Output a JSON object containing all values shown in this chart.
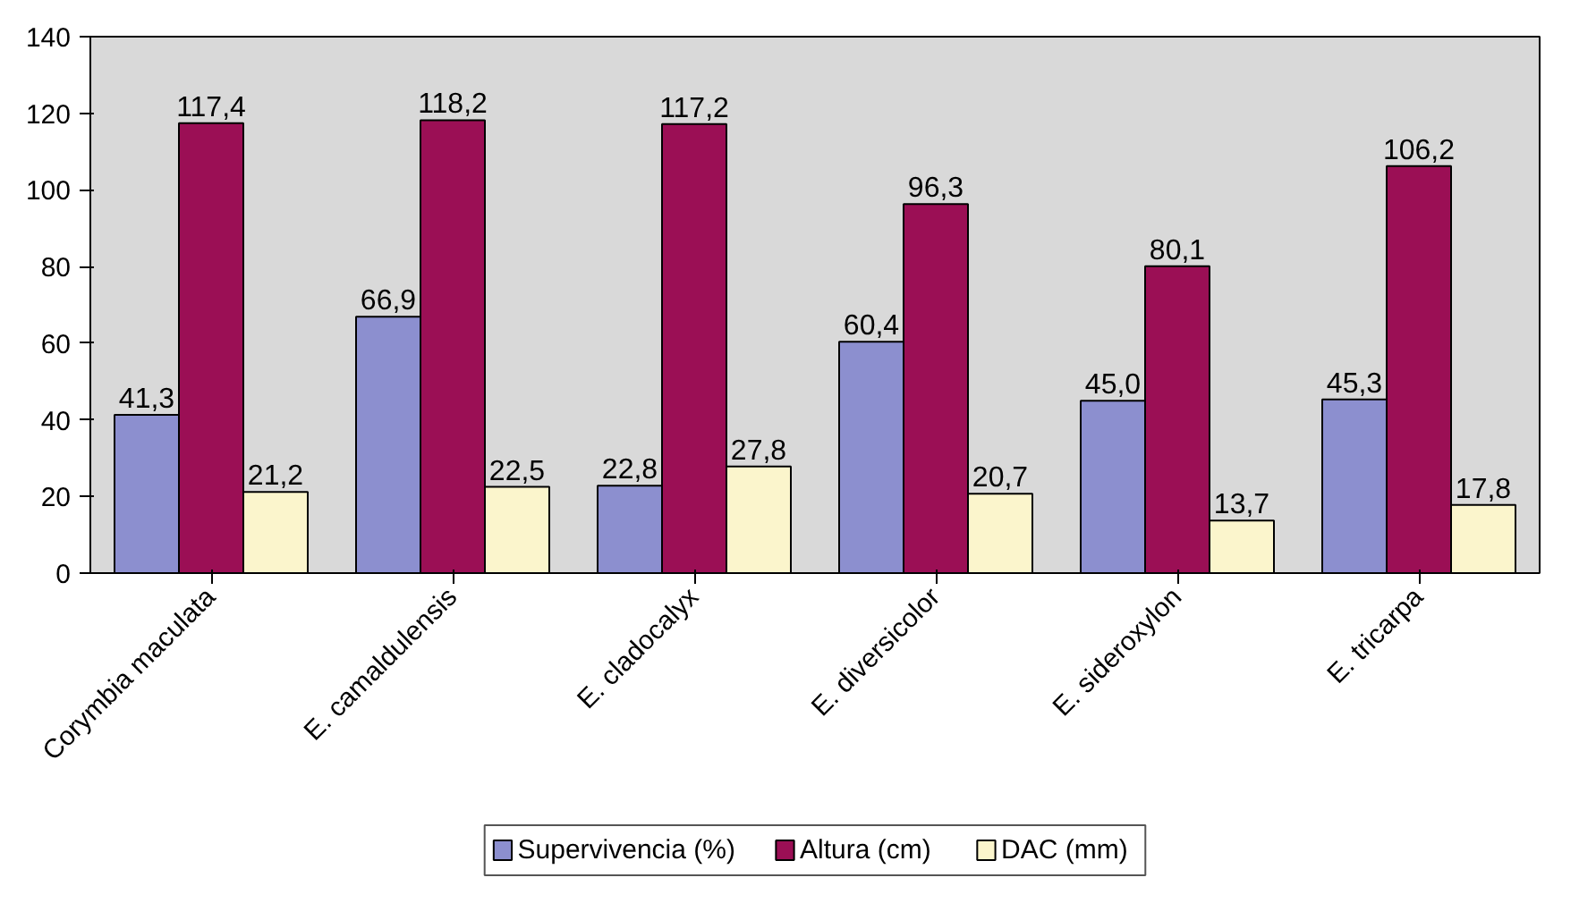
{
  "chart_data": {
    "type": "bar",
    "categories": [
      "Corymbia maculata",
      "E. camaldulensis",
      "E. cladocalyx",
      "E. diversicolor",
      "E. sideroxylon",
      "E. tricarpa"
    ],
    "series": [
      {
        "name": "Supervivencia (%)",
        "color": "#8c8fcf",
        "values": [
          41.3,
          66.9,
          22.8,
          60.4,
          45.0,
          45.3
        ],
        "value_labels": [
          "41,3",
          "66,9",
          "22,8",
          "60,4",
          "45,0",
          "45,3"
        ]
      },
      {
        "name": "Altura (cm)",
        "color": "#9b0f55",
        "values": [
          117.4,
          118.2,
          117.2,
          96.3,
          80.1,
          106.2
        ],
        "value_labels": [
          "117,4",
          "118,2",
          "117,2",
          "96,3",
          "80,1",
          "106,2"
        ]
      },
      {
        "name": "DAC (mm)",
        "color": "#fbf5cc",
        "values": [
          21.2,
          22.5,
          27.8,
          20.7,
          13.7,
          17.8
        ],
        "value_labels": [
          "21,2",
          "22,5",
          "27,8",
          "20,7",
          "13,7",
          "17,8"
        ]
      }
    ],
    "ylim": [
      0,
      140
    ],
    "yticks": [
      0,
      20,
      40,
      60,
      80,
      100,
      120,
      140
    ],
    "grid": false,
    "legend": "bottom"
  }
}
